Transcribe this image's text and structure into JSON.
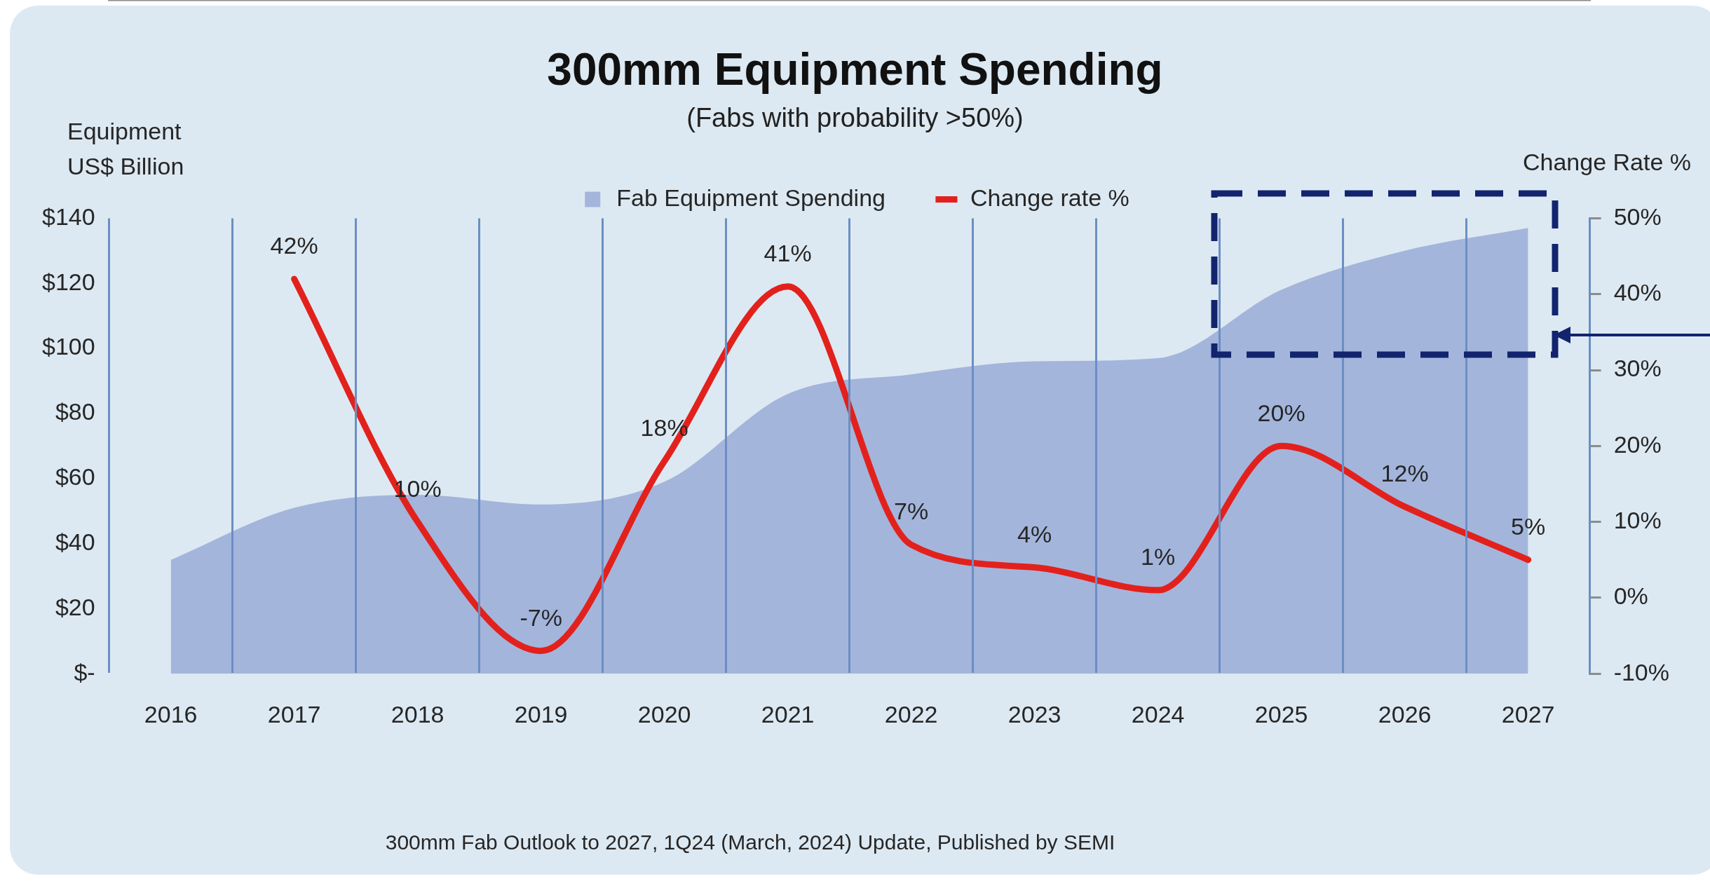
{
  "chart_data": {
    "type": "area",
    "title": "300mm Equipment Spending",
    "subtitle": "(Fabs with probability >50%)",
    "ylabel": "Equipment\nUS$ Billion",
    "y2label": "Change Rate %",
    "categories": [
      "2016",
      "2017",
      "2018",
      "2019",
      "2020",
      "2021",
      "2022",
      "2023",
      "2024",
      "2025",
      "2026",
      "2027"
    ],
    "series": [
      {
        "name": "Fab Equipment Spending",
        "color": "#a4b5dc",
        "values": [
          35,
          51,
          55,
          52,
          59,
          86,
          92,
          96,
          97,
          118,
          130,
          137
        ]
      },
      {
        "name": "Change rate %",
        "type": "line",
        "axis": "y2",
        "color": "#e3211c",
        "values": [
          null,
          42,
          10,
          -7,
          18,
          41,
          7,
          4,
          1,
          20,
          12,
          5
        ],
        "value_labels": [
          null,
          "42%",
          "10%",
          "-7%",
          "18%",
          "41%",
          "7%",
          "4%",
          "1%",
          "20%",
          "12%",
          "5%"
        ]
      }
    ],
    "ylim": [
      0,
      140
    ],
    "yticks": [
      {
        "value": 0,
        "label": "$-"
      },
      {
        "value": 20,
        "label": "$20"
      },
      {
        "value": 40,
        "label": "$40"
      },
      {
        "value": 60,
        "label": "$60"
      },
      {
        "value": 80,
        "label": "$80"
      },
      {
        "value": 100,
        "label": "$100"
      },
      {
        "value": 120,
        "label": "$120"
      },
      {
        "value": 140,
        "label": "$140"
      }
    ],
    "y2lim": [
      -10,
      50
    ],
    "y2ticks": [
      {
        "value": -10,
        "label": "-10%"
      },
      {
        "value": 0,
        "label": "0%"
      },
      {
        "value": 10,
        "label": "10%"
      },
      {
        "value": 20,
        "label": "20%"
      },
      {
        "value": 30,
        "label": "30%"
      },
      {
        "value": 40,
        "label": "40%"
      },
      {
        "value": 50,
        "label": "50%"
      }
    ],
    "grid": "x",
    "legend": "top",
    "annotations": [
      "300mm Fab Outlook to 2027, 1Q24 (March, 2024) Update, Published by SEMI"
    ]
  }
}
